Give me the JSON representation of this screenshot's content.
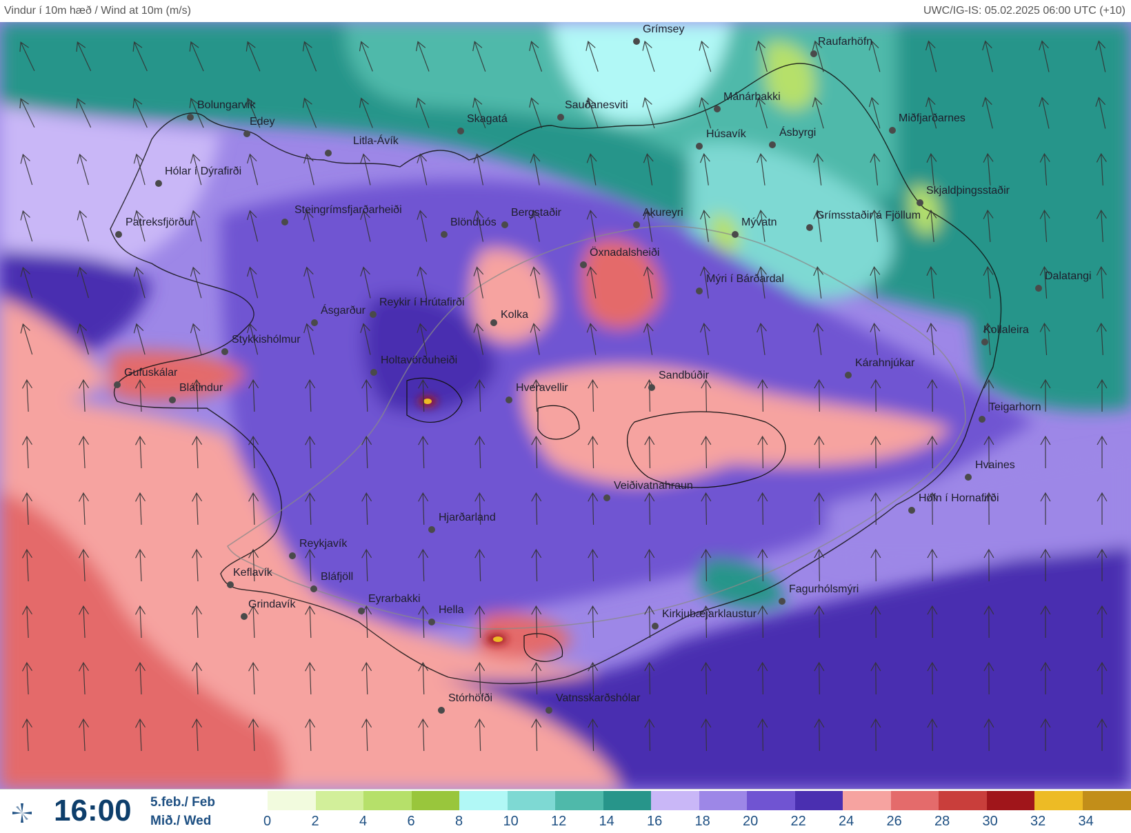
{
  "header": {
    "title": "Vindur í 10m hæð / Wind at 10m (m/s)",
    "source": "UWC/IG-IS: 05.02.2025 06:00 UTC (+10)"
  },
  "footer": {
    "time": "16:00",
    "date_line1": "5.feb./ Feb",
    "date_line2": "Mið./ Wed",
    "icon": "wind-icon"
  },
  "legend": {
    "unit": "m/s",
    "bins": [
      {
        "from": 0,
        "color": "#f2fbde"
      },
      {
        "from": 2,
        "color": "#d2ef9a"
      },
      {
        "from": 4,
        "color": "#b6e06a"
      },
      {
        "from": 6,
        "color": "#99c63c"
      },
      {
        "from": 8,
        "color": "#b1f8f6"
      },
      {
        "from": 10,
        "color": "#7ed9d3"
      },
      {
        "from": 12,
        "color": "#4fb9aa"
      },
      {
        "from": 14,
        "color": "#27958a"
      },
      {
        "from": 16,
        "color": "#c9b7f7"
      },
      {
        "from": 18,
        "color": "#9d87e7"
      },
      {
        "from": 20,
        "color": "#7054d2"
      },
      {
        "from": 22,
        "color": "#4a2fb0"
      },
      {
        "from": 24,
        "color": "#f6a3a0"
      },
      {
        "from": 26,
        "color": "#e46b6b"
      },
      {
        "from": 28,
        "color": "#c93e3b"
      },
      {
        "from": 30,
        "color": "#a0151a"
      },
      {
        "from": 32,
        "color": "#edbb25"
      },
      {
        "from": 34,
        "color": "#c28e19"
      }
    ],
    "ticks": [
      "0",
      "2",
      "4",
      "6",
      "8",
      "10",
      "12",
      "14",
      "16",
      "18",
      "20",
      "22",
      "24",
      "26",
      "28",
      "30",
      "32",
      "34"
    ]
  },
  "stations": [
    {
      "name": "Grímsey"
    },
    {
      "name": "Raufarhöfn"
    },
    {
      "name": "Mánárbakki"
    },
    {
      "name": "Sauðanesviti"
    },
    {
      "name": "Skagatá"
    },
    {
      "name": "Bolungarvík"
    },
    {
      "name": "Edey"
    },
    {
      "name": "Litla-Ávík"
    },
    {
      "name": "Hólar í Dýrafirði"
    },
    {
      "name": "Patreksfjörður"
    },
    {
      "name": "Steingrímsfjarðarheiði"
    },
    {
      "name": "Blönduós"
    },
    {
      "name": "Bergstaðir"
    },
    {
      "name": "Akureyri"
    },
    {
      "name": "Húsavík"
    },
    {
      "name": "Ásbyrgi"
    },
    {
      "name": "Miðfjarðarnes"
    },
    {
      "name": "Skjaldþingsstaðir"
    },
    {
      "name": "Grímsstaðir á Fjöllum"
    },
    {
      "name": "Mývatn"
    },
    {
      "name": "Öxnadalsheiði"
    },
    {
      "name": "Mýri í Bárðardal"
    },
    {
      "name": "Dalatangi"
    },
    {
      "name": "Kollaleira"
    },
    {
      "name": "Ásgarður"
    },
    {
      "name": "Reykir í Hrútafirði"
    },
    {
      "name": "Kolka"
    },
    {
      "name": "Stykkishólmur"
    },
    {
      "name": "Gufuskálar"
    },
    {
      "name": "Blátindur"
    },
    {
      "name": "Holtavörðuheiði"
    },
    {
      "name": "Sandbúðir"
    },
    {
      "name": "Kárahnjúkar"
    },
    {
      "name": "Hveravellir"
    },
    {
      "name": "Teigarhorn"
    },
    {
      "name": "Hvaines"
    },
    {
      "name": "Höfn í Hornafirði"
    },
    {
      "name": "Veiðivatnahraun"
    },
    {
      "name": "Hjarðarland"
    },
    {
      "name": "Reykjavík"
    },
    {
      "name": "Keflavík"
    },
    {
      "name": "Bláfjöll"
    },
    {
      "name": "Grindavík"
    },
    {
      "name": "Eyrarbakki"
    },
    {
      "name": "Hella"
    },
    {
      "name": "Kirkjubæjarklaustur"
    },
    {
      "name": "Fagurhólsmýri"
    },
    {
      "name": "Stórhöfði"
    },
    {
      "name": "Vatnsskarðshólar"
    }
  ]
}
